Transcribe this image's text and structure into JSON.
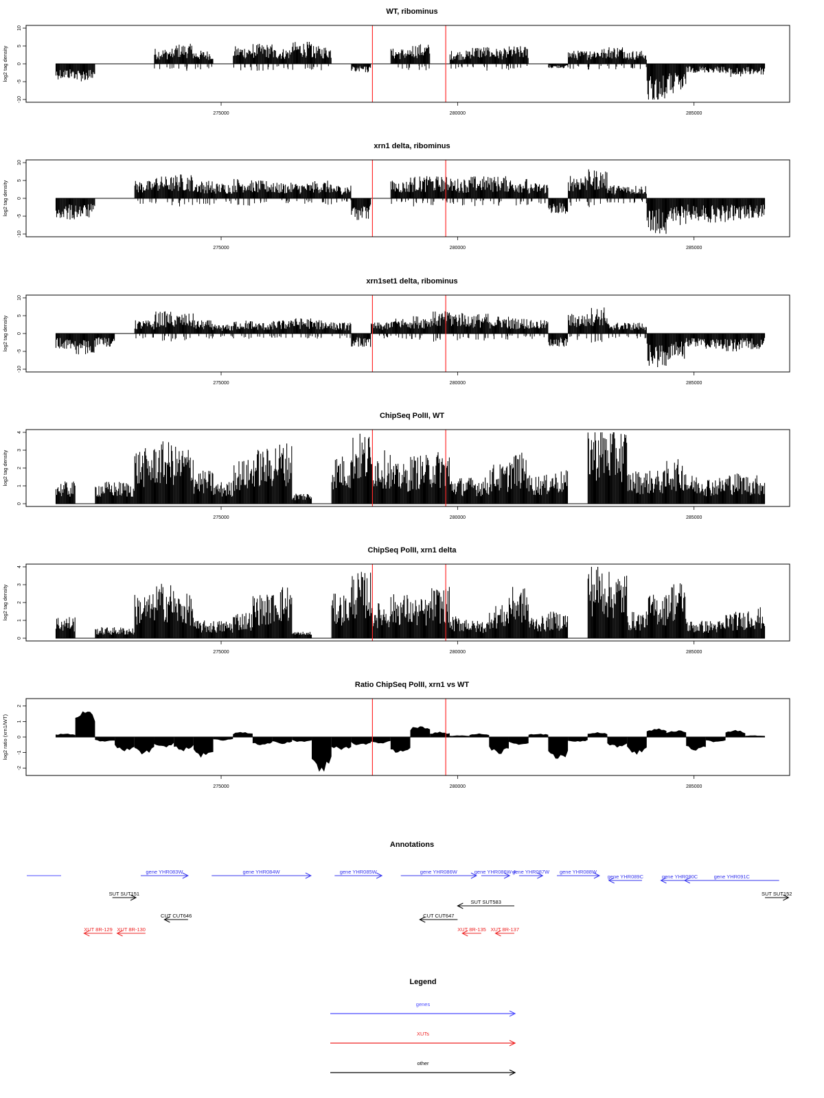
{
  "chart_data": [
    {
      "type": "bar",
      "title": "WT, ribominus",
      "ylabel": "log2 tag density",
      "ylim": [
        -10,
        10
      ],
      "yticks": [
        "-10",
        "-5",
        "0",
        "5",
        "10"
      ],
      "xlim": [
        271500,
        286500
      ],
      "xticks": [
        "275000",
        "280000",
        "285000"
      ],
      "marker_lines": [
        278200,
        279750
      ],
      "series": [
        {
          "values": [
            -3.5,
            -4,
            0,
            0,
            0,
            3.5,
            4.5,
            3,
            0,
            4,
            4.5,
            3.5,
            5,
            4,
            0,
            -2,
            0,
            3.5,
            4.5,
            0,
            3,
            4,
            3.5,
            4,
            0,
            -1,
            3,
            3.5,
            4,
            3,
            -9,
            -7,
            -2,
            -2,
            -3,
            -2.5
          ]
        }
      ]
    },
    {
      "type": "bar",
      "title": "xrn1 delta, ribominus",
      "ylabel": "log2 tag density",
      "ylim": [
        -10,
        10
      ],
      "yticks": [
        "-10",
        "-5",
        "0",
        "5",
        "10"
      ],
      "xlim": [
        271500,
        286500
      ],
      "xticks": [
        "275000",
        "280000",
        "285000"
      ],
      "marker_lines": [
        278200,
        279750
      ],
      "series": [
        {
          "values": [
            -5,
            -4.5,
            0,
            0,
            4,
            5,
            5.5,
            4,
            3.5,
            4.5,
            4,
            3.5,
            3.5,
            4,
            3,
            -5,
            0,
            4,
            5,
            5,
            4.5,
            5,
            5,
            4.5,
            3.5,
            -3.5,
            5.5,
            6.5,
            3,
            3,
            -8,
            -6,
            -5,
            -5.5,
            -5,
            -4.5
          ]
        }
      ]
    },
    {
      "type": "bar",
      "title": "xrn1set1 delta, ribominus",
      "ylabel": "log2 tag density",
      "ylim": [
        -10,
        10
      ],
      "yticks": [
        "-10",
        "-5",
        "0",
        "5",
        "10"
      ],
      "xlim": [
        271500,
        286500
      ],
      "xticks": [
        "275000",
        "280000",
        "285000"
      ],
      "marker_lines": [
        278200,
        279750
      ],
      "series": [
        {
          "values": [
            -3.5,
            -5,
            -3,
            0,
            3,
            5,
            4.5,
            3,
            2,
            3,
            2.5,
            3,
            3.5,
            3,
            2.5,
            -3,
            2.5,
            3.5,
            4,
            5,
            5,
            4.5,
            4,
            3.5,
            3,
            -3,
            4.5,
            6,
            2.5,
            2.5,
            -8,
            -6,
            -3,
            -3.5,
            -4,
            -3.5
          ]
        }
      ]
    },
    {
      "type": "bar",
      "title": "ChipSeq PolII, WT",
      "ylabel": "log2 tag density",
      "ylim": [
        0,
        4
      ],
      "yticks": [
        "0",
        "1",
        "2",
        "3",
        "4"
      ],
      "xlim": [
        271500,
        286500
      ],
      "xticks": [
        "275000",
        "280000",
        "285000"
      ],
      "marker_lines": [
        278200,
        279750
      ],
      "series": [
        {
          "values": [
            1,
            0,
            1,
            1,
            2.5,
            2.8,
            2.6,
            1.5,
            1,
            2,
            2.5,
            2.8,
            0.5,
            0,
            2.2,
            3.2,
            2.4,
            1.8,
            2.2,
            2.4,
            1.2,
            1.2,
            1.8,
            2.3,
            1.3,
            1.5,
            0,
            3.6,
            3.4,
            1.5,
            1.5,
            2,
            1.3,
            1.2,
            1.4,
            1.3
          ]
        }
      ]
    },
    {
      "type": "bar",
      "title": "ChipSeq PolII, xrn1 delta",
      "ylabel": "log2 tag density",
      "ylim": [
        0,
        4
      ],
      "yticks": [
        "0",
        "1",
        "2",
        "3",
        "4"
      ],
      "xlim": [
        271500,
        286500
      ],
      "xticks": [
        "275000",
        "280000",
        "285000"
      ],
      "marker_lines": [
        278200,
        279750
      ],
      "series": [
        {
          "values": [
            1,
            0,
            0.5,
            0.5,
            2,
            2.5,
            2,
            0.8,
            0.8,
            1.2,
            2,
            2.4,
            0.3,
            0,
            2,
            3,
            1.6,
            2,
            1.8,
            2.3,
            1,
            0.8,
            1.5,
            2.3,
            1,
            1.2,
            0,
            3.4,
            3,
            1.2,
            2,
            2.6,
            0.8,
            0.8,
            1.2,
            1.4
          ]
        }
      ]
    },
    {
      "type": "bar",
      "title": "Ratio ChipSeq PolII, xrn1 vs WT",
      "ylabel": "log2 ratio (xrn1/WT)",
      "ylim": [
        -2.3,
        2.3
      ],
      "yticks": [
        "-2",
        "-1",
        "0",
        "1",
        "2"
      ],
      "xlim": [
        271500,
        286500
      ],
      "xticks": [
        "275000",
        "280000",
        "285000"
      ],
      "marker_lines": [
        278200,
        279750
      ],
      "series": [
        {
          "values": [
            0.2,
            1.6,
            -0.3,
            -0.8,
            -1,
            -0.6,
            -0.8,
            -1.2,
            -0.2,
            0.3,
            -0.5,
            -0.4,
            -0.3,
            -2,
            -0.8,
            -0.5,
            -0.4,
            -1,
            0.7,
            0.3,
            0.1,
            0.2,
            -1,
            -0.5,
            0.2,
            -1.4,
            -0.3,
            0.3,
            -0.6,
            -1,
            0.5,
            0.4,
            -0.8,
            -0.3,
            0.4,
            0.1
          ]
        }
      ]
    }
  ],
  "annotations": {
    "title": "Annotations",
    "xlim": [
      271500,
      286500
    ],
    "features": [
      {
        "label": "",
        "color": "#4a4aff",
        "start": 271500,
        "end": 272200,
        "dir": "none",
        "row": 0
      },
      {
        "label": "gene YHR083W",
        "color": "#3333ee",
        "start": 273300,
        "end": 274300,
        "dir": "right",
        "row": 0
      },
      {
        "label": "gene YHR084W",
        "color": "#3333ee",
        "start": 274800,
        "end": 276900,
        "dir": "right",
        "row": 0
      },
      {
        "label": "gene YHR085W",
        "color": "#3333ee",
        "start": 277400,
        "end": 278400,
        "dir": "right",
        "row": 0
      },
      {
        "label": "gene YHR086W",
        "color": "#3333ee",
        "start": 278800,
        "end": 280400,
        "dir": "right",
        "row": 0
      },
      {
        "label": "gene YHR086W-A",
        "color": "#3333ee",
        "start": 280500,
        "end": 281100,
        "dir": "right",
        "row": 0
      },
      {
        "label": "gene YHR087W",
        "color": "#3333ee",
        "start": 281300,
        "end": 281800,
        "dir": "right",
        "row": 0
      },
      {
        "label": "gene YHR088W",
        "color": "#3333ee",
        "start": 282100,
        "end": 283000,
        "dir": "right",
        "row": 0
      },
      {
        "label": "gene YHR089C",
        "color": "#3333ee",
        "start": 283200,
        "end": 283900,
        "dir": "left",
        "row": 1
      },
      {
        "label": "gene YHR090C",
        "color": "#3333ee",
        "start": 284300,
        "end": 285100,
        "dir": "left",
        "row": 1
      },
      {
        "label": "gene YHR091C",
        "color": "#3333ee",
        "start": 284800,
        "end": 286800,
        "dir": "left",
        "row": 1
      },
      {
        "label": "SUT SUT151",
        "color": "#000000",
        "start": 272700,
        "end": 273200,
        "dir": "right",
        "row": 2
      },
      {
        "label": "SUT SUT583",
        "color": "#000000",
        "start": 280000,
        "end": 281200,
        "dir": "left",
        "row": 3
      },
      {
        "label": "SUT SUT152",
        "color": "#000000",
        "start": 286500,
        "end": 287000,
        "dir": "right",
        "row": 2
      },
      {
        "label": "CUT CUT646",
        "color": "#000000",
        "start": 273800,
        "end": 274300,
        "dir": "left",
        "row": 4
      },
      {
        "label": "CUT CUT647",
        "color": "#000000",
        "start": 279200,
        "end": 280000,
        "dir": "left",
        "row": 4
      },
      {
        "label": "XUT 8R-129",
        "color": "#ee2222",
        "start": 272100,
        "end": 272700,
        "dir": "left",
        "row": 5
      },
      {
        "label": "XUT 8R-130",
        "color": "#ee2222",
        "start": 272800,
        "end": 273400,
        "dir": "left",
        "row": 5
      },
      {
        "label": "XUT 8R-135",
        "color": "#ee2222",
        "start": 280100,
        "end": 280500,
        "dir": "left",
        "row": 5
      },
      {
        "label": "XUT 8R-137",
        "color": "#ee2222",
        "start": 280800,
        "end": 281200,
        "dir": "left",
        "row": 5
      }
    ]
  },
  "legend": {
    "title": "Legend",
    "items": [
      {
        "label": "genes",
        "color": "#4a4aff"
      },
      {
        "label": "XUTs",
        "color": "#ee2222"
      },
      {
        "label": "other",
        "color": "#000000"
      }
    ]
  },
  "colors": {
    "signal": "#000000",
    "marker_line": "#ff2a2a"
  }
}
